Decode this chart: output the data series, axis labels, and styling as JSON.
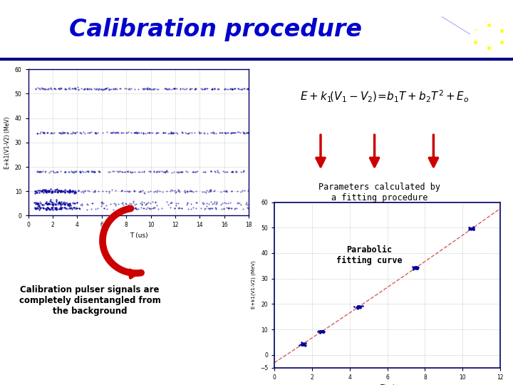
{
  "title": "Calibration procedure",
  "title_color": "#0000CC",
  "title_fontsize": 24,
  "bg_light_blue": "#C8D8F0",
  "bg_pink": "#E8C0E8",
  "header_line_color": "#000088",
  "params_text": "Parameters calculated by\na fitting procedure",
  "calib_text": "Calibration pulser signals are\ncompletely disentangled from\nthe background",
  "parabolic_text": "Parabolic\nfitting curve",
  "scatter_xlim": [
    0,
    18
  ],
  "scatter_ylim": [
    0,
    60
  ],
  "scatter_xlabel": "T (us)",
  "scatter_ylabel": "E+k1(V1-V2) (MeV)",
  "scatter_yticks": [
    0,
    10,
    20,
    30,
    40,
    50,
    60
  ],
  "scatter_xticks": [
    0,
    2,
    4,
    6,
    8,
    10,
    12,
    14,
    16,
    18
  ],
  "fit_xlim": [
    0,
    12
  ],
  "fit_ylim": [
    -5,
    60
  ],
  "fit_xlabel": "T(us)",
  "fit_ylabel": "E+k1(V1-V2) (MeV)",
  "fit_yticks": [
    -5,
    0,
    10,
    20,
    30,
    40,
    50,
    60
  ],
  "fit_xticks": [
    0,
    2,
    4,
    6,
    8,
    10,
    12
  ],
  "arrow_color": "#CC0000",
  "dot_color": "#000099",
  "fit_line_color": "#CC4444",
  "formula_bg": "#D8E4F8",
  "formula_border": "#8888AA"
}
